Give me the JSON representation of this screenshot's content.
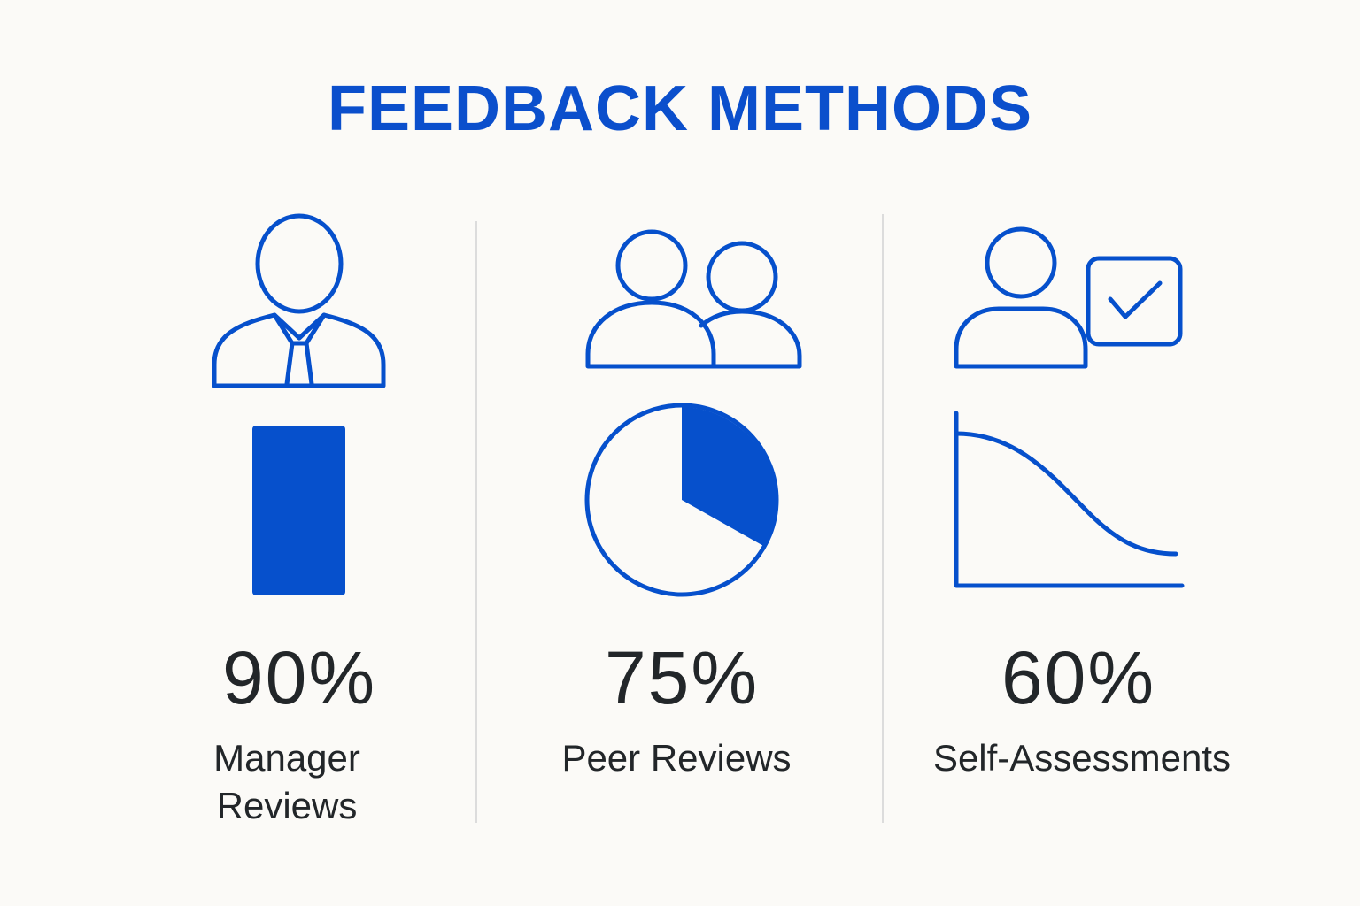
{
  "title": "FEEDBACK METHODS",
  "items": [
    {
      "value": "90%",
      "label": "Manager Reviews"
    },
    {
      "value": "75%",
      "label": "Peer Reviews"
    },
    {
      "value": "60%",
      "label": "Self-Assessments"
    }
  ]
}
